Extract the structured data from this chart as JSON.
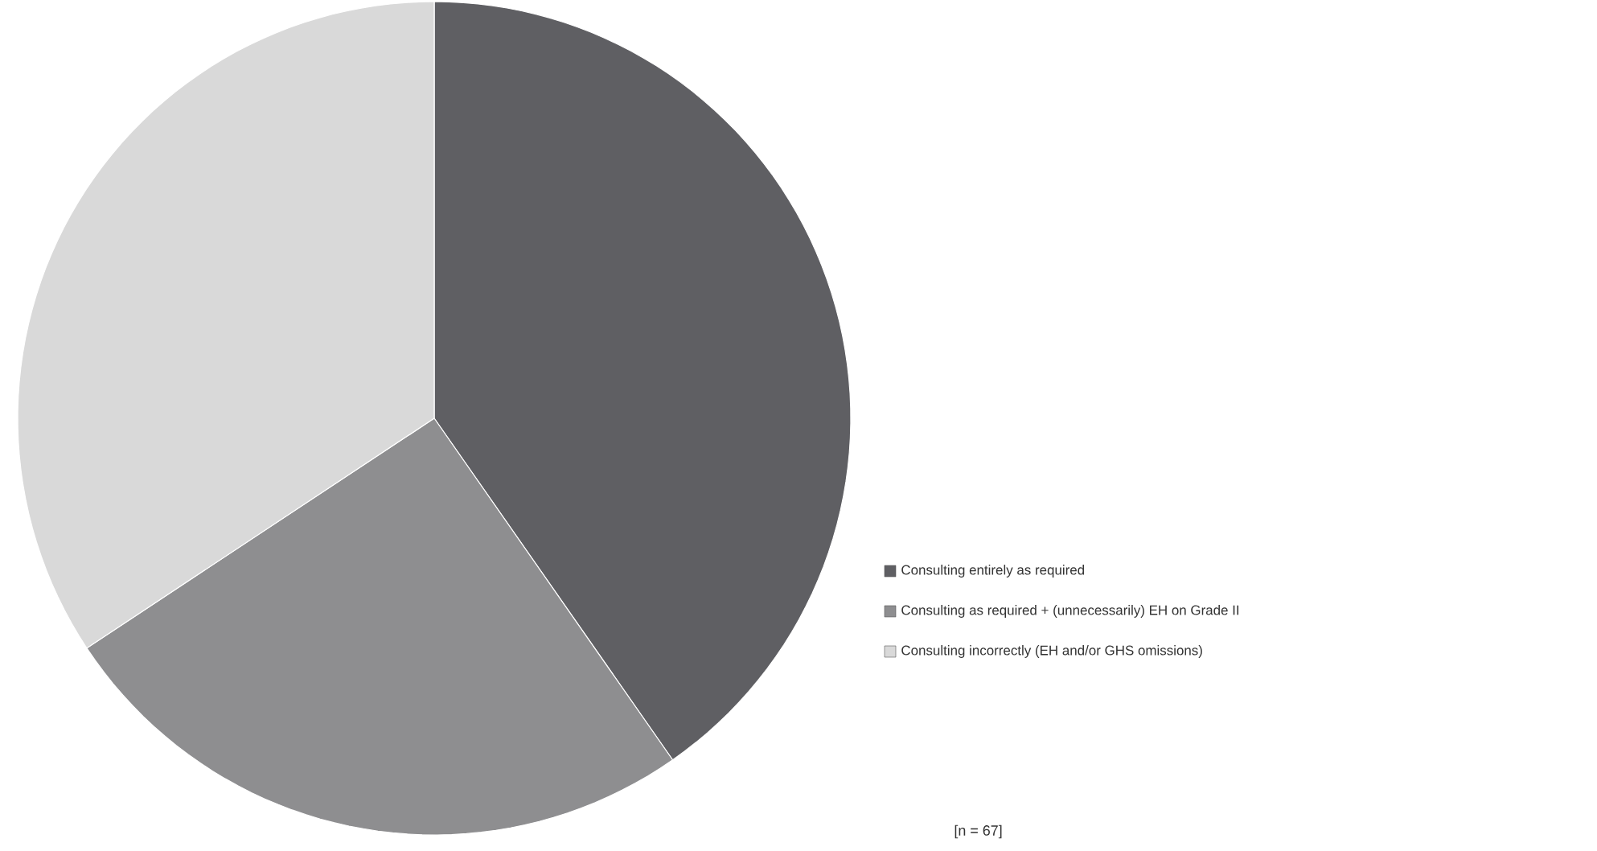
{
  "chart_data": {
    "type": "pie",
    "categories": [
      "Consulting entirely as required",
      "Consulting as required + (unnecessarily) EH on Grade II",
      "Consulting incorrectly (EH and/or GHS omissions)"
    ],
    "values": [
      40.3,
      25.4,
      34.3
    ],
    "colors": [
      "#5f5f63",
      "#8e8e90",
      "#d9d9d9"
    ],
    "legend": "right",
    "annotations": [
      "[n = 67]"
    ]
  }
}
